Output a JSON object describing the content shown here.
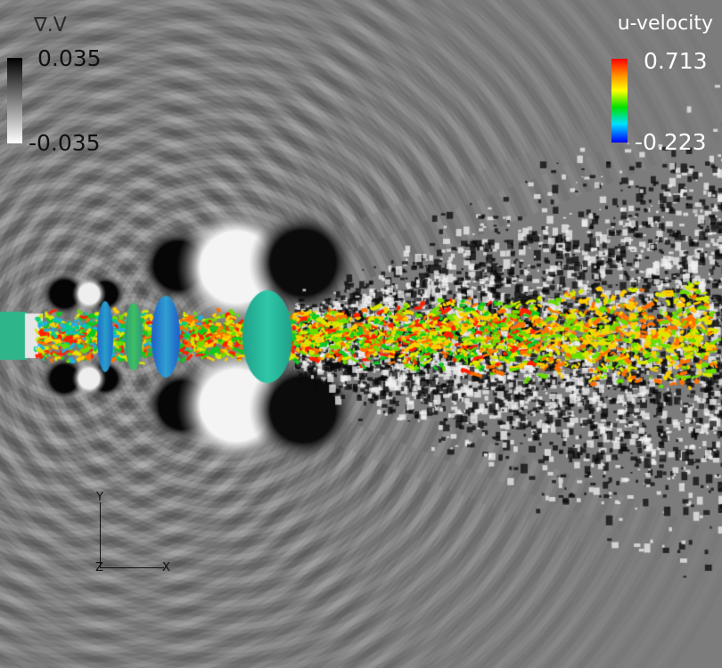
{
  "divergence_legend": {
    "title": "∇.V",
    "max": "0.035",
    "min": "-0.035",
    "colors": [
      "#000000",
      "#ffffff"
    ]
  },
  "velocity_legend": {
    "title": "u-velocity",
    "max": "0.713",
    "min": "-0.223",
    "colors": [
      "#ff0000",
      "#ff9000",
      "#ffff00",
      "#00e000",
      "#00e0ff",
      "#0000ff"
    ]
  },
  "axes_triad": {
    "y": "Y",
    "z": "Z",
    "x": "X"
  },
  "background_color": "#7c7c7c"
}
